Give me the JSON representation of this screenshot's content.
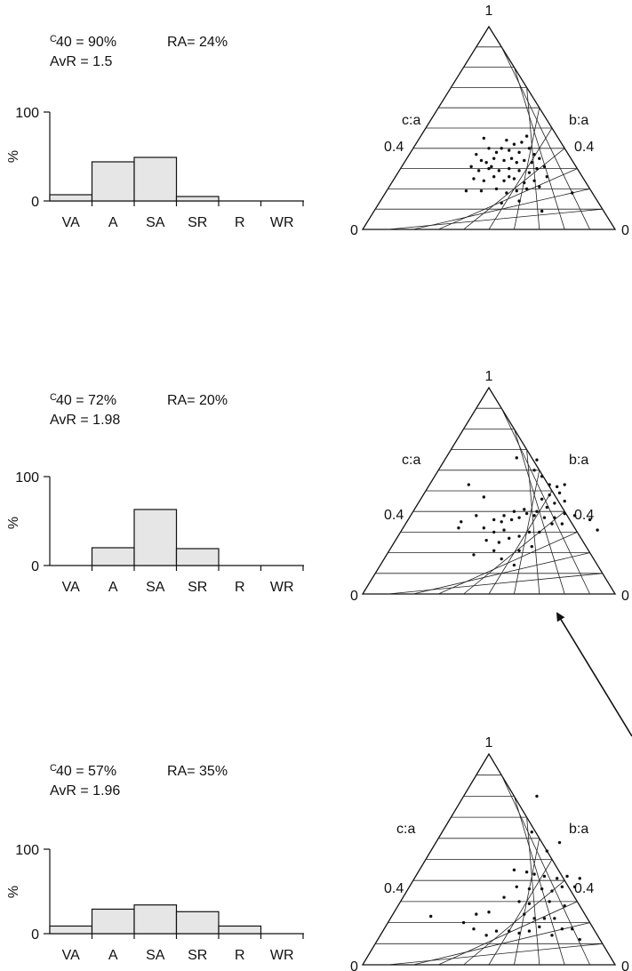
{
  "panels": [
    {
      "stats": {
        "c_sup": "C",
        "c40": "40 = 90%",
        "ra": "RA= 24%",
        "avr": "AvR = 1.5"
      },
      "histogram": {
        "type": "bar",
        "categories": [
          "VA",
          "A",
          "SA",
          "SR",
          "R",
          "WR"
        ],
        "values": [
          7,
          44,
          49,
          5,
          0,
          0
        ],
        "ylabel": "%",
        "ylim": [
          0,
          100
        ],
        "yticks": [
          "100",
          "0"
        ]
      },
      "ternary": {
        "apex_label": "1",
        "left_label": "c:a",
        "right_label": "b:a",
        "left_tick": "0.4",
        "right_tick": "0.4",
        "bottom_left_label": "0",
        "bottom_right_label": "0",
        "points": [
          [
            0.48,
            0.45
          ],
          [
            0.65,
            0.46
          ],
          [
            0.57,
            0.44
          ],
          [
            0.6,
            0.42
          ],
          [
            0.63,
            0.43
          ],
          [
            0.55,
            0.4
          ],
          [
            0.5,
            0.4
          ],
          [
            0.53,
            0.38
          ],
          [
            0.58,
            0.39
          ],
          [
            0.62,
            0.38
          ],
          [
            0.66,
            0.4
          ],
          [
            0.68,
            0.37
          ],
          [
            0.45,
            0.37
          ],
          [
            0.47,
            0.34
          ],
          [
            0.49,
            0.33
          ],
          [
            0.52,
            0.35
          ],
          [
            0.56,
            0.34
          ],
          [
            0.59,
            0.35
          ],
          [
            0.61,
            0.33
          ],
          [
            0.64,
            0.34
          ],
          [
            0.67,
            0.33
          ],
          [
            0.7,
            0.35
          ],
          [
            0.43,
            0.31
          ],
          [
            0.46,
            0.29
          ],
          [
            0.5,
            0.3
          ],
          [
            0.54,
            0.29
          ],
          [
            0.58,
            0.3
          ],
          [
            0.62,
            0.29
          ],
          [
            0.66,
            0.28
          ],
          [
            0.69,
            0.3
          ],
          [
            0.72,
            0.31
          ],
          [
            0.44,
            0.25
          ],
          [
            0.48,
            0.24
          ],
          [
            0.52,
            0.26
          ],
          [
            0.56,
            0.24
          ],
          [
            0.6,
            0.25
          ],
          [
            0.64,
            0.23
          ],
          [
            0.68,
            0.24
          ],
          [
            0.73,
            0.26
          ],
          [
            0.41,
            0.19
          ],
          [
            0.47,
            0.19
          ],
          [
            0.53,
            0.2
          ],
          [
            0.57,
            0.18
          ],
          [
            0.61,
            0.19
          ],
          [
            0.65,
            0.2
          ],
          [
            0.7,
            0.21
          ],
          [
            0.55,
            0.13
          ],
          [
            0.62,
            0.14
          ],
          [
            0.83,
            0.18
          ],
          [
            0.71,
            0.09
          ],
          [
            0.51,
            0.31
          ],
          [
            0.58,
            0.26
          ]
        ]
      }
    },
    {
      "stats": {
        "c_sup": "C",
        "c40": "40 = 72%",
        "ra": "RA= 20%",
        "avr": "AvR = 1.98"
      },
      "histogram": {
        "type": "bar",
        "categories": [
          "VA",
          "A",
          "SA",
          "SR",
          "R",
          "WR"
        ],
        "values": [
          0,
          20,
          63,
          19,
          0,
          0
        ],
        "ylabel": "%",
        "ylim": [
          0,
          100
        ],
        "yticks": [
          "100",
          "0"
        ]
      },
      "ternary": {
        "apex_label": "1",
        "left_label": "c:a",
        "right_label": "b:a",
        "left_tick": "0.4",
        "right_tick": "0.4",
        "bottom_left_label": "0",
        "bottom_right_label": "0",
        "points": [
          [
            0.61,
            0.66
          ],
          [
            0.69,
            0.65
          ],
          [
            0.68,
            0.6
          ],
          [
            0.71,
            0.57
          ],
          [
            0.74,
            0.53
          ],
          [
            0.77,
            0.52
          ],
          [
            0.8,
            0.53
          ],
          [
            0.78,
            0.49
          ],
          [
            0.74,
            0.48
          ],
          [
            0.71,
            0.46
          ],
          [
            0.76,
            0.44
          ],
          [
            0.8,
            0.45
          ],
          [
            0.73,
            0.42
          ],
          [
            0.69,
            0.4
          ],
          [
            0.65,
            0.39
          ],
          [
            0.62,
            0.37
          ],
          [
            0.59,
            0.36
          ],
          [
            0.55,
            0.35
          ],
          [
            0.52,
            0.36
          ],
          [
            0.56,
            0.38
          ],
          [
            0.6,
            0.4
          ],
          [
            0.64,
            0.41
          ],
          [
            0.68,
            0.38
          ],
          [
            0.72,
            0.37
          ],
          [
            0.76,
            0.37
          ],
          [
            0.8,
            0.39
          ],
          [
            0.84,
            0.38
          ],
          [
            0.75,
            0.34
          ],
          [
            0.79,
            0.34
          ],
          [
            0.9,
            0.36
          ],
          [
            0.93,
            0.31
          ],
          [
            0.42,
            0.53
          ],
          [
            0.48,
            0.47
          ],
          [
            0.45,
            0.38
          ],
          [
            0.39,
            0.35
          ],
          [
            0.38,
            0.32
          ],
          [
            0.48,
            0.32
          ],
          [
            0.52,
            0.3
          ],
          [
            0.56,
            0.31
          ],
          [
            0.49,
            0.26
          ],
          [
            0.54,
            0.25
          ],
          [
            0.58,
            0.27
          ],
          [
            0.62,
            0.28
          ],
          [
            0.66,
            0.3
          ],
          [
            0.7,
            0.3
          ],
          [
            0.44,
            0.19
          ],
          [
            0.55,
            0.17
          ],
          [
            0.62,
            0.21
          ],
          [
            0.67,
            0.23
          ],
          [
            0.52,
            0.21
          ],
          [
            0.6,
            0.14
          ]
        ]
      }
    },
    {
      "stats": {
        "c_sup": "C",
        "c40": "40 = 57%",
        "ra": "RA= 35%",
        "avr": "AvR = 1.96"
      },
      "histogram": {
        "type": "bar",
        "categories": [
          "VA",
          "A",
          "SA",
          "SR",
          "R",
          "WR"
        ],
        "values": [
          9,
          29,
          34,
          26,
          9,
          0
        ],
        "ylabel": "%",
        "ylim": [
          0,
          100
        ],
        "yticks": [
          "100",
          "0"
        ]
      },
      "ternary": {
        "apex_label": "1",
        "left_label": "c:a",
        "right_label": "b:a",
        "left_tick": "0.4",
        "right_tick": "0.4",
        "bottom_left_label": "0",
        "bottom_right_label": "0",
        "points": [
          [
            0.69,
            0.8
          ],
          [
            0.67,
            0.63
          ],
          [
            0.73,
            0.54
          ],
          [
            0.78,
            0.58
          ],
          [
            0.6,
            0.45
          ],
          [
            0.65,
            0.44
          ],
          [
            0.68,
            0.43
          ],
          [
            0.72,
            0.42
          ],
          [
            0.77,
            0.41
          ],
          [
            0.81,
            0.42
          ],
          [
            0.86,
            0.41
          ],
          [
            0.61,
            0.37
          ],
          [
            0.66,
            0.36
          ],
          [
            0.71,
            0.36
          ],
          [
            0.75,
            0.35
          ],
          [
            0.79,
            0.37
          ],
          [
            0.84,
            0.37
          ],
          [
            0.56,
            0.32
          ],
          [
            0.62,
            0.3
          ],
          [
            0.66,
            0.29
          ],
          [
            0.74,
            0.3
          ],
          [
            0.8,
            0.28
          ],
          [
            0.64,
            0.24
          ],
          [
            0.68,
            0.22
          ],
          [
            0.72,
            0.22
          ],
          [
            0.76,
            0.22
          ],
          [
            0.5,
            0.25
          ],
          [
            0.45,
            0.24
          ],
          [
            0.4,
            0.2
          ],
          [
            0.44,
            0.17
          ],
          [
            0.49,
            0.14
          ],
          [
            0.53,
            0.16
          ],
          [
            0.58,
            0.16
          ],
          [
            0.62,
            0.15
          ],
          [
            0.66,
            0.16
          ],
          [
            0.7,
            0.18
          ],
          [
            0.75,
            0.14
          ],
          [
            0.79,
            0.17
          ],
          [
            0.83,
            0.17
          ],
          [
            0.27,
            0.23
          ],
          [
            0.86,
            0.12
          ]
        ]
      }
    }
  ]
}
